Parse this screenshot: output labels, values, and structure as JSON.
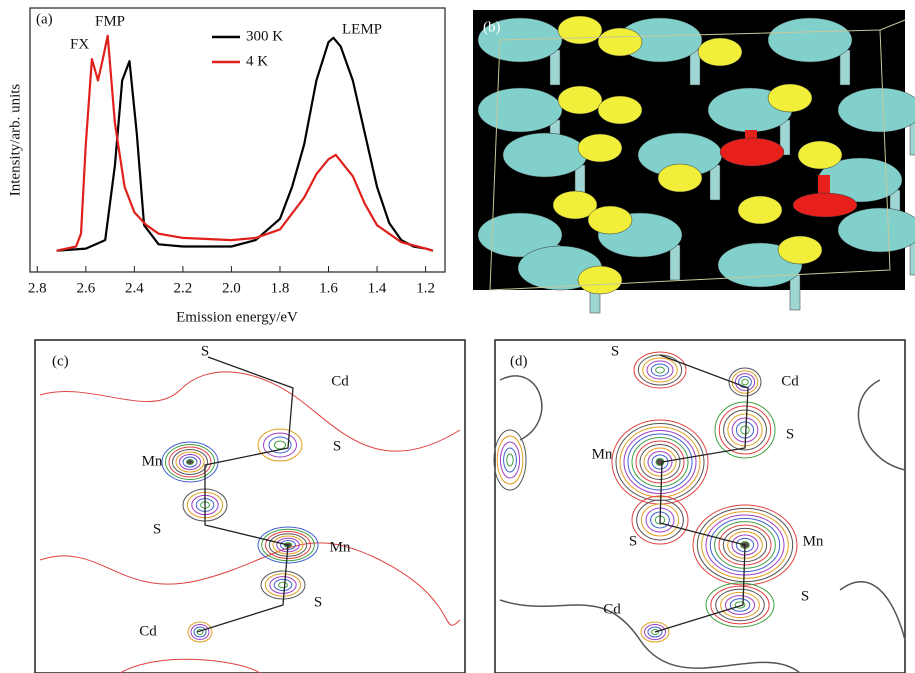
{
  "chart_data": {
    "type": "line",
    "panel_label": "(a)",
    "x_label": "Emission energy/eV",
    "y_label": "Intensity/arb. units",
    "annotations": [
      "FX",
      "FMP",
      "LEMP"
    ],
    "xlim": [
      2.83,
      1.12
    ],
    "ylim": [
      -0.1,
      1.14
    ],
    "xticks": [
      2.8,
      2.6,
      2.4,
      2.2,
      {
        "value": 2,
        "label": "2.0"
      },
      1.8,
      1.6,
      1.4,
      1.2
    ],
    "series": [
      {
        "name": "300 K",
        "color": "#000000",
        "x": [
          2.72,
          2.6,
          2.52,
          2.48,
          2.45,
          2.42,
          2.39,
          2.36,
          2.3,
          2.2,
          2.0,
          1.9,
          1.8,
          1.75,
          1.7,
          1.65,
          1.6,
          1.58,
          1.55,
          1.5,
          1.45,
          1.4,
          1.35,
          1.3,
          1.25,
          1.2,
          1.17
        ],
        "values": [
          0,
          0.01,
          0.05,
          0.4,
          0.8,
          0.89,
          0.55,
          0.12,
          0.03,
          0.02,
          0.02,
          0.05,
          0.15,
          0.3,
          0.5,
          0.8,
          0.98,
          1.0,
          0.96,
          0.8,
          0.55,
          0.3,
          0.13,
          0.05,
          0.02,
          0.01,
          0
        ]
      },
      {
        "name": "4 K",
        "color": "#e0201b",
        "x": [
          2.72,
          2.64,
          2.62,
          2.6,
          2.575,
          2.55,
          2.53,
          2.51,
          2.48,
          2.44,
          2.4,
          2.35,
          2.3,
          2.2,
          2.0,
          1.9,
          1.8,
          1.7,
          1.65,
          1.6,
          1.57,
          1.5,
          1.45,
          1.4,
          1.3,
          1.2,
          1.17
        ],
        "values": [
          0,
          0.02,
          0.08,
          0.5,
          0.9,
          0.8,
          0.9,
          1.01,
          0.6,
          0.3,
          0.18,
          0.12,
          0.08,
          0.06,
          0.05,
          0.06,
          0.1,
          0.25,
          0.36,
          0.43,
          0.45,
          0.35,
          0.22,
          0.12,
          0.04,
          0.01,
          0
        ]
      }
    ]
  },
  "panel_b": {
    "label": "(b)"
  },
  "panel_c": {
    "label": "(c)",
    "atoms": [
      "S",
      "Cd",
      "S",
      "Mn",
      "S",
      "Mn",
      "S",
      "Cd"
    ]
  },
  "panel_d": {
    "label": "(d)",
    "atoms": [
      "S",
      "Cd",
      "S",
      "Mn",
      "S",
      "Mn",
      "S",
      "Cd"
    ]
  }
}
